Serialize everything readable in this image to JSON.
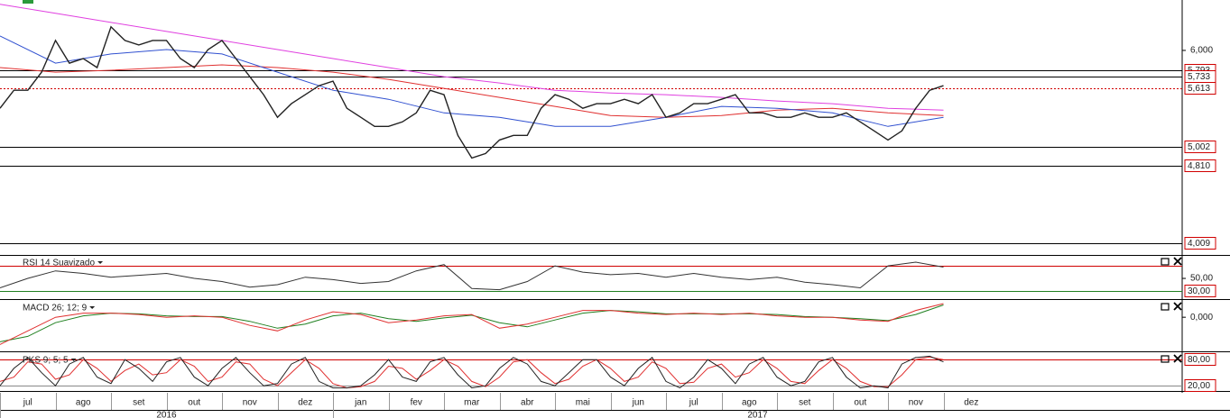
{
  "chart_data": [
    {
      "type": "line",
      "xlim": [
        0,
        21.3
      ],
      "ylim": [
        3890,
        6520
      ],
      "yticks": [
        {
          "value": 6000,
          "label": "6,000"
        }
      ],
      "levels": [
        {
          "value": 5793,
          "label": "5,793",
          "color": "#000000"
        },
        {
          "value": 5733,
          "label": "5,733",
          "color": "#000000"
        },
        {
          "value": 5613,
          "label": "5,613",
          "color": "#d00000"
        },
        {
          "value": 5002,
          "label": "5,002",
          "color": "#000000"
        },
        {
          "value": 4810,
          "label": "4,810",
          "color": "#000000"
        },
        {
          "value": 4009,
          "label": "4,009",
          "color": "#000000"
        }
      ],
      "xticks": [
        {
          "value": 0,
          "label": "jul"
        },
        {
          "value": 1,
          "label": "ago"
        },
        {
          "value": 2,
          "label": "set"
        },
        {
          "value": 3,
          "label": "out"
        },
        {
          "value": 4,
          "label": "nov"
        },
        {
          "value": 5,
          "label": "dez"
        },
        {
          "value": 6,
          "label": "jan"
        },
        {
          "value": 7,
          "label": "fev"
        },
        {
          "value": 8,
          "label": "mar"
        },
        {
          "value": 9,
          "label": "abr"
        },
        {
          "value": 10,
          "label": "mai"
        },
        {
          "value": 11,
          "label": "jun"
        },
        {
          "value": 12,
          "label": "jul"
        },
        {
          "value": 13,
          "label": "ago"
        },
        {
          "value": 14,
          "label": "set"
        },
        {
          "value": 15,
          "label": "out"
        },
        {
          "value": 16,
          "label": "nov"
        },
        {
          "value": 17,
          "label": "dez"
        }
      ],
      "years": [
        {
          "value": 0,
          "label": "2016"
        },
        {
          "value": 6,
          "label": "2017"
        }
      ],
      "series": [
        {
          "color": "#e040e0",
          "x": [
            0,
            1,
            2,
            3,
            4,
            5,
            6,
            7,
            8,
            9,
            10,
            11,
            12,
            13,
            14,
            15,
            16,
            17
          ],
          "values": [
            6476,
            6383,
            6289,
            6196,
            6103,
            6009,
            5916,
            5823,
            5729,
            5664,
            5589,
            5561,
            5543,
            5515,
            5478,
            5450,
            5403,
            5384
          ]
        },
        {
          "color": "#e03030",
          "x": [
            0,
            1,
            2,
            3,
            4,
            5,
            6,
            7,
            8,
            9,
            10,
            11,
            12,
            13,
            14,
            15,
            16,
            17
          ],
          "values": [
            5823,
            5776,
            5795,
            5823,
            5851,
            5823,
            5776,
            5701,
            5608,
            5515,
            5422,
            5328,
            5310,
            5328,
            5384,
            5403,
            5356,
            5328
          ]
        },
        {
          "color": "#3050d0",
          "x": [
            0,
            1,
            2,
            3,
            4,
            5,
            6,
            7,
            8,
            9,
            10,
            11,
            12,
            13,
            14,
            15,
            16,
            17
          ],
          "values": [
            6149,
            5869,
            5963,
            6009,
            5963,
            5776,
            5589,
            5496,
            5356,
            5310,
            5216,
            5216,
            5310,
            5422,
            5403,
            5356,
            5216,
            5310
          ]
        },
        {
          "color": "#222222",
          "x": [
            0,
            0.25,
            0.5,
            0.75,
            1,
            1.25,
            1.5,
            1.75,
            2,
            2.25,
            2.5,
            2.75,
            3,
            3.25,
            3.5,
            3.75,
            4,
            4.25,
            4.5,
            4.75,
            5,
            5.25,
            5.5,
            5.75,
            6,
            6.25,
            6.5,
            6.75,
            7,
            7.25,
            7.5,
            7.75,
            8,
            8.25,
            8.5,
            8.75,
            9,
            9.25,
            9.5,
            9.75,
            10,
            10.25,
            10.5,
            10.75,
            11,
            11.25,
            11.5,
            11.75,
            12,
            12.25,
            12.5,
            12.75,
            13,
            13.25,
            13.5,
            13.75,
            14,
            14.25,
            14.5,
            14.75,
            15,
            15.25,
            15.5,
            15.75,
            16,
            16.25,
            16.5,
            16.75,
            17
          ],
          "values": [
            5403,
            5589,
            5589,
            5776,
            6103,
            5869,
            5916,
            5823,
            6243,
            6103,
            6056,
            6103,
            6103,
            5916,
            5823,
            6009,
            6103,
            5916,
            5729,
            5543,
            5310,
            5450,
            5543,
            5636,
            5683,
            5403,
            5310,
            5216,
            5216,
            5263,
            5356,
            5589,
            5543,
            5123,
            4890,
            4936,
            5076,
            5123,
            5123,
            5403,
            5543,
            5496,
            5403,
            5450,
            5450,
            5496,
            5450,
            5543,
            5310,
            5356,
            5450,
            5450,
            5496,
            5543,
            5356,
            5356,
            5310,
            5310,
            5356,
            5310,
            5310,
            5356,
            5263,
            5170,
            5076,
            5170,
            5403,
            5589,
            5636
          ]
        }
      ]
    },
    {
      "type": "line",
      "title": "RSI 14 Suavizado",
      "xlim": [
        0,
        21.3
      ],
      "ylim": [
        17,
        86
      ],
      "yticks": [
        {
          "value": 50,
          "label": "50,00"
        }
      ],
      "levels": [
        {
          "value": 70,
          "color": "#d00000"
        },
        {
          "value": 30,
          "label": "30,00",
          "color": "#208020"
        }
      ],
      "series": [
        {
          "color": "#333333",
          "x": [
            0,
            0.5,
            1,
            1.5,
            2,
            2.5,
            3,
            3.5,
            4,
            4.5,
            5,
            5.5,
            6,
            6.5,
            7,
            7.5,
            8,
            8.5,
            9,
            9.5,
            10,
            10.5,
            11,
            11.5,
            12,
            12.5,
            13,
            13.5,
            14,
            14.5,
            15,
            15.5,
            16,
            16.5,
            17
          ],
          "values": [
            35,
            50,
            62,
            58,
            52,
            55,
            58,
            50,
            45,
            36,
            40,
            52,
            48,
            42,
            45,
            62,
            72,
            34,
            32,
            45,
            70,
            60,
            56,
            58,
            52,
            58,
            52,
            48,
            52,
            44,
            40,
            35,
            70,
            76,
            68
          ]
        }
      ]
    },
    {
      "type": "line",
      "title": "MACD 26; 12; 9",
      "xlim": [
        0,
        21.3
      ],
      "ylim": [
        -0.25,
        0.12
      ],
      "yticks": [
        {
          "value": 0,
          "label": "0,000"
        }
      ],
      "series": [
        {
          "color": "#208020",
          "x": [
            0,
            0.5,
            1,
            1.5,
            2,
            2.5,
            3,
            3.5,
            4,
            4.5,
            5,
            5.5,
            6,
            6.5,
            7,
            7.5,
            8,
            8.5,
            9,
            9.5,
            10,
            10.5,
            11,
            11.5,
            12,
            12.5,
            13,
            13.5,
            14,
            14.5,
            15,
            15.5,
            16,
            16.5,
            17
          ],
          "values": [
            -0.18,
            -0.14,
            -0.04,
            0.01,
            0.03,
            0.025,
            0.01,
            0.005,
            0.005,
            -0.03,
            -0.08,
            -0.05,
            0.01,
            0.03,
            -0.01,
            -0.03,
            -0.005,
            0.015,
            -0.04,
            -0.07,
            -0.02,
            0.03,
            0.05,
            0.04,
            0.025,
            0.025,
            0.025,
            0.025,
            0.02,
            0.005,
            0,
            -0.01,
            -0.025,
            0.02,
            0.09
          ]
        },
        {
          "color": "#e03030",
          "x": [
            0,
            0.5,
            1,
            1.5,
            2,
            2.5,
            3,
            3.5,
            4,
            4.5,
            5,
            5.5,
            6,
            6.5,
            7,
            7.5,
            8,
            8.5,
            9,
            9.5,
            10,
            10.5,
            11,
            11.5,
            12,
            12.5,
            13,
            13.5,
            14,
            14.5,
            15,
            15.5,
            16,
            16.5,
            17
          ],
          "values": [
            -0.2,
            -0.1,
            0,
            0.03,
            0.03,
            0.02,
            0,
            0.01,
            0,
            -0.06,
            -0.1,
            -0.02,
            0.04,
            0.02,
            -0.04,
            -0.02,
            0.01,
            0.02,
            -0.08,
            -0.05,
            0,
            0.05,
            0.05,
            0.03,
            0.02,
            0.03,
            0.02,
            0.03,
            0.01,
            0,
            0,
            -0.02,
            -0.03,
            0.05,
            0.1
          ]
        }
      ]
    },
    {
      "type": "line",
      "title": "PKS 9; 5; 5",
      "xlim": [
        0,
        21.3
      ],
      "ylim": [
        8,
        95
      ],
      "levels": [
        {
          "value": 80,
          "label": "80,00",
          "color": "#d00000"
        },
        {
          "value": 20,
          "label": "20,00",
          "color": "#888888"
        }
      ],
      "series": [
        {
          "color": "#e03030",
          "x": [
            0,
            0.25,
            0.5,
            0.75,
            1,
            1.25,
            1.5,
            1.75,
            2,
            2.25,
            2.5,
            2.75,
            3,
            3.25,
            3.5,
            3.75,
            4,
            4.25,
            4.5,
            4.75,
            5,
            5.25,
            5.5,
            5.75,
            6,
            6.25,
            6.5,
            6.75,
            7,
            7.25,
            7.5,
            7.75,
            8,
            8.25,
            8.5,
            8.75,
            9,
            9.25,
            9.5,
            9.75,
            10,
            10.25,
            10.5,
            10.75,
            11,
            11.25,
            11.5,
            11.75,
            12,
            12.25,
            12.5,
            12.75,
            13,
            13.25,
            13.5,
            13.75,
            14,
            14.25,
            14.5,
            14.75,
            15,
            15.25,
            15.5,
            15.75,
            16,
            16.25,
            16.5,
            16.75,
            17
          ],
          "values": [
            30,
            40,
            75,
            70,
            35,
            45,
            80,
            60,
            30,
            55,
            70,
            45,
            50,
            80,
            65,
            30,
            40,
            75,
            70,
            35,
            20,
            50,
            80,
            60,
            25,
            15,
            18,
            30,
            65,
            60,
            35,
            55,
            80,
            65,
            30,
            18,
            40,
            75,
            80,
            50,
            25,
            35,
            65,
            80,
            60,
            30,
            40,
            75,
            60,
            25,
            28,
            60,
            70,
            40,
            50,
            80,
            60,
            30,
            25,
            55,
            80,
            60,
            30,
            18,
            18,
            45,
            80,
            86,
            80
          ]
        },
        {
          "color": "#222222",
          "x": [
            0,
            0.25,
            0.5,
            0.75,
            1,
            1.25,
            1.5,
            1.75,
            2,
            2.25,
            2.5,
            2.75,
            3,
            3.25,
            3.5,
            3.75,
            4,
            4.25,
            4.5,
            4.75,
            5,
            5.25,
            5.5,
            5.75,
            6,
            6.25,
            6.5,
            6.75,
            7,
            7.25,
            7.5,
            7.75,
            8,
            8.25,
            8.5,
            8.75,
            9,
            9.25,
            9.5,
            9.75,
            10,
            10.25,
            10.5,
            10.75,
            11,
            11.25,
            11.5,
            11.75,
            12,
            12.25,
            12.5,
            12.75,
            13,
            13.25,
            13.5,
            13.75,
            14,
            14.25,
            14.5,
            14.75,
            15,
            15.25,
            15.5,
            15.75,
            16,
            16.25,
            16.5,
            16.75,
            17
          ],
          "values": [
            20,
            60,
            85,
            50,
            20,
            70,
            85,
            40,
            25,
            80,
            60,
            30,
            75,
            85,
            40,
            20,
            60,
            85,
            50,
            20,
            25,
            70,
            85,
            30,
            15,
            15,
            20,
            45,
            80,
            40,
            30,
            75,
            85,
            45,
            15,
            20,
            60,
            85,
            70,
            30,
            20,
            50,
            80,
            80,
            40,
            20,
            60,
            85,
            30,
            15,
            40,
            80,
            60,
            25,
            70,
            85,
            40,
            20,
            30,
            75,
            85,
            40,
            15,
            20,
            15,
            70,
            85,
            88,
            75
          ]
        }
      ]
    }
  ]
}
